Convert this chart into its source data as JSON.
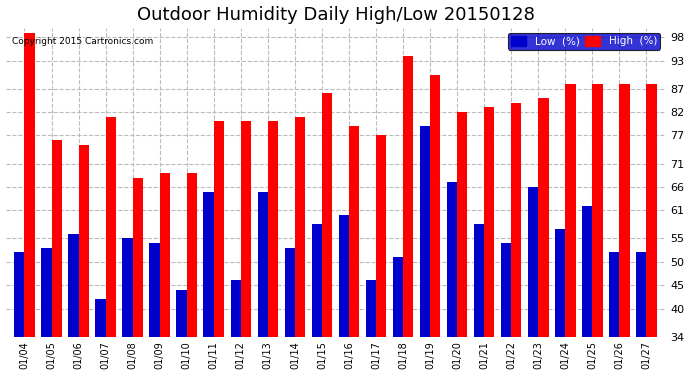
{
  "title": "Outdoor Humidity Daily High/Low 20150128",
  "copyright": "Copyright 2015 Cartronics.com",
  "categories": [
    "01/04",
    "01/05",
    "01/06",
    "01/07",
    "01/08",
    "01/09",
    "01/10",
    "01/11",
    "01/12",
    "01/13",
    "01/14",
    "01/15",
    "01/16",
    "01/17",
    "01/18",
    "01/19",
    "01/20",
    "01/21",
    "01/22",
    "01/23",
    "01/24",
    "01/25",
    "01/26",
    "01/27"
  ],
  "low_values": [
    52,
    53,
    56,
    42,
    55,
    54,
    44,
    65,
    46,
    65,
    53,
    58,
    60,
    46,
    51,
    79,
    67,
    58,
    54,
    66,
    57,
    62,
    52,
    52
  ],
  "high_values": [
    99,
    76,
    75,
    81,
    68,
    69,
    69,
    80,
    80,
    80,
    81,
    86,
    79,
    77,
    94,
    90,
    82,
    83,
    84,
    85,
    88,
    88,
    88,
    88
  ],
  "ylim": [
    34,
    100
  ],
  "yticks": [
    34,
    40,
    45,
    50,
    55,
    61,
    66,
    71,
    77,
    82,
    87,
    93,
    98
  ],
  "low_color": "#0000cc",
  "high_color": "#ff0000",
  "bg_color": "#ffffff",
  "grid_color": "#bbbbbb",
  "title_fontsize": 13,
  "bar_width": 0.38
}
